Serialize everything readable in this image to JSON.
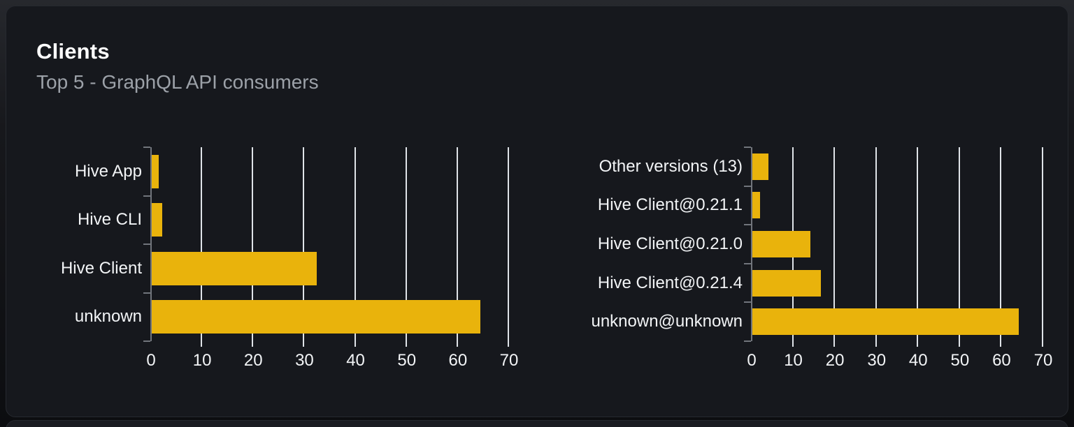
{
  "card": {
    "title": "Clients",
    "subtitle": "Top 5 - GraphQL API consumers"
  },
  "colors": {
    "bar": "#e9b30c",
    "gridline": "#dfe3e8",
    "axis": "#71757c",
    "card_background": "#16181d",
    "title_text": "#ffffff",
    "subtitle_text": "#9ca1a8",
    "label_text": "#f2f4f6"
  },
  "chart_data": [
    {
      "type": "bar",
      "orientation": "horizontal",
      "title": "",
      "categories": [
        "Hive App",
        "Hive CLI",
        "Hive Client",
        "unknown"
      ],
      "values": [
        1.4,
        2.1,
        32.2,
        64.3
      ],
      "xlim": [
        0,
        70
      ],
      "xticks": [
        "0",
        "10",
        "20",
        "30",
        "40",
        "50",
        "60",
        "70"
      ],
      "grid": true,
      "legend": "none"
    },
    {
      "type": "bar",
      "orientation": "horizontal",
      "title": "",
      "categories": [
        "Other versions (13)",
        "Hive Client@0.21.1",
        "Hive Client@0.21.0",
        "Hive Client@0.21.4",
        "unknown@unknown"
      ],
      "values": [
        3.9,
        1.9,
        13.9,
        16.4,
        63.9
      ],
      "xlim": [
        0,
        70
      ],
      "xticks": [
        "0",
        "10",
        "20",
        "30",
        "40",
        "50",
        "60",
        "70"
      ],
      "grid": true,
      "legend": "none"
    }
  ]
}
